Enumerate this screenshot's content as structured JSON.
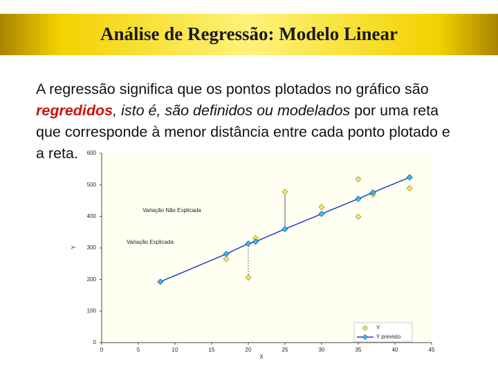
{
  "title": "Análise de Regressão: Modelo Linear",
  "body": [
    "A regressão significa que os pontos plotados no gráfico são ",
    "regredidos",
    ", ",
    "isto é, são definidos ou modelados",
    " por uma reta que corresponde à menor distância entre cada ponto plotado e a reta."
  ],
  "chart_data": {
    "type": "scatter",
    "xlabel": "X",
    "ylabel": "Y",
    "xlim": [
      0,
      45
    ],
    "xticks": [
      0,
      5,
      10,
      15,
      20,
      25,
      30,
      35,
      40,
      45
    ],
    "ylim": [
      0,
      600
    ],
    "yticks": [
      0,
      100,
      200,
      300,
      400,
      500,
      600
    ],
    "series": [
      {
        "name": "Y",
        "color": "#f7ea4f",
        "x": [
          17,
          20,
          21,
          25,
          30,
          35,
          35,
          37,
          42
        ],
        "values": [
          265,
          206,
          331,
          478,
          430,
          518,
          399,
          469,
          489
        ]
      },
      {
        "name": "Y previsto",
        "color": "#1c3fc4",
        "line": true,
        "x": [
          8,
          17,
          20,
          21,
          25,
          30,
          35,
          37,
          42
        ],
        "values": [
          193,
          281,
          314,
          320,
          360,
          408,
          456,
          476,
          524
        ]
      }
    ],
    "annotations": [
      "Variação Não Explicada",
      "Variação Explicada"
    ],
    "legend": "lower right"
  }
}
